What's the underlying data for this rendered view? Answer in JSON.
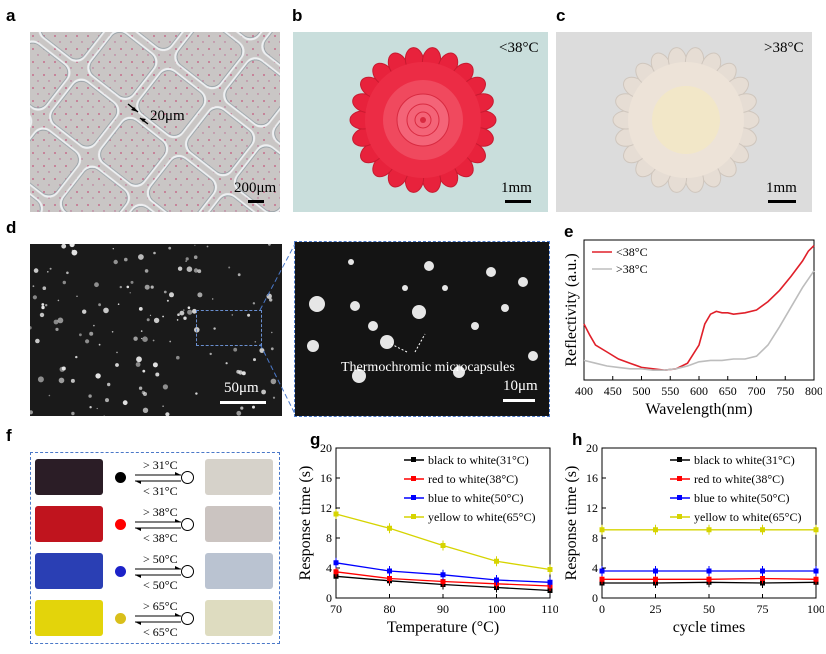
{
  "panels": {
    "a": "a",
    "b": "b",
    "c": "c",
    "d": "d",
    "e": "e",
    "f": "f",
    "g": "g",
    "h": "h"
  },
  "a": {
    "mark": "20μm",
    "scale": "200μm"
  },
  "b": {
    "temp": "<38°C",
    "scale": "1mm"
  },
  "c": {
    "temp": ">38°C",
    "scale": "1mm"
  },
  "d": {
    "scale_left": "50μm",
    "scale_right": "10μm",
    "annotation": "Thermochromic microcapsules"
  },
  "f": {
    "rows": [
      {
        "color": "#2b1d26",
        "dot": "#000000",
        "above": "> 31°C",
        "below": "< 31°C",
        "after": "#d6d2ca"
      },
      {
        "color": "#c0141e",
        "dot": "#ff0000",
        "above": "> 38°C",
        "below": "< 38°C",
        "after": "#cbc4c1"
      },
      {
        "color": "#2a3fb4",
        "dot": "#1c22c8",
        "above": "> 50°C",
        "below": "< 50°C",
        "after": "#bac3d1"
      },
      {
        "color": "#e3d40b",
        "dot": "#d9bf1a",
        "above": "> 65°C",
        "below": "< 65°C",
        "after": "#dedcc0"
      }
    ]
  },
  "chart_data": [
    {
      "panel": "e",
      "type": "line",
      "xlabel": "Wavelength(nm)",
      "ylabel": "Reflectivity (a.u.)",
      "xlim": [
        400,
        800
      ],
      "xticks": [
        400,
        450,
        500,
        550,
        600,
        650,
        700,
        750,
        800
      ],
      "legend_position": "top-left",
      "series": [
        {
          "name": "<38°C",
          "color": "#e0202a",
          "x": [
            400,
            410,
            420,
            440,
            460,
            480,
            500,
            520,
            540,
            560,
            580,
            600,
            610,
            620,
            630,
            640,
            650,
            660,
            680,
            700,
            720,
            740,
            760,
            780,
            790,
            800
          ],
          "y": [
            0.4,
            0.32,
            0.25,
            0.2,
            0.15,
            0.12,
            0.09,
            0.08,
            0.07,
            0.08,
            0.12,
            0.25,
            0.4,
            0.47,
            0.49,
            0.48,
            0.48,
            0.47,
            0.48,
            0.5,
            0.56,
            0.64,
            0.74,
            0.85,
            0.92,
            0.96
          ]
        },
        {
          "name": ">38°C",
          "color": "#bdbdbd",
          "x": [
            400,
            420,
            440,
            460,
            480,
            500,
            520,
            540,
            560,
            580,
            600,
            620,
            640,
            660,
            680,
            700,
            720,
            740,
            760,
            780,
            800
          ],
          "y": [
            0.14,
            0.12,
            0.1,
            0.09,
            0.08,
            0.08,
            0.07,
            0.07,
            0.08,
            0.1,
            0.13,
            0.14,
            0.14,
            0.15,
            0.15,
            0.17,
            0.25,
            0.38,
            0.52,
            0.66,
            0.78
          ]
        }
      ]
    },
    {
      "panel": "g",
      "type": "line",
      "xlabel": "Temperature (°C)",
      "ylabel": "Response time (s)",
      "xlim": [
        70,
        110
      ],
      "ylim": [
        0,
        20
      ],
      "xticks": [
        70,
        80,
        90,
        100,
        110
      ],
      "yticks": [
        0,
        4,
        8,
        12,
        16,
        20
      ],
      "legend_position": "top-right",
      "series": [
        {
          "name": "black to white(31°C)",
          "color": "#000000",
          "x": [
            70,
            80,
            90,
            100,
            110
          ],
          "y": [
            2.9,
            2.3,
            1.8,
            1.4,
            1.0
          ]
        },
        {
          "name": "red to white(38°C)",
          "color": "#ff0000",
          "x": [
            70,
            80,
            90,
            100,
            110
          ],
          "y": [
            3.5,
            2.6,
            2.2,
            1.9,
            1.6
          ]
        },
        {
          "name": "blue to white(50°C)",
          "color": "#0000ff",
          "x": [
            70,
            80,
            90,
            100,
            110
          ],
          "y": [
            4.7,
            3.6,
            3.1,
            2.4,
            2.1
          ]
        },
        {
          "name": "yellow to white(65°C)",
          "color": "#d6d400",
          "x": [
            70,
            80,
            90,
            100,
            110
          ],
          "y": [
            11.2,
            9.3,
            7.0,
            4.9,
            3.8
          ]
        }
      ]
    },
    {
      "panel": "h",
      "type": "line",
      "xlabel": "cycle times",
      "ylabel": "Response time (s)",
      "xlim": [
        0,
        100
      ],
      "ylim": [
        0,
        20
      ],
      "xticks": [
        0,
        25,
        50,
        75,
        100
      ],
      "yticks": [
        0,
        4,
        8,
        12,
        16,
        20
      ],
      "legend_position": "top-right",
      "series": [
        {
          "name": "black to white(31°C)",
          "color": "#000000",
          "x": [
            0,
            25,
            50,
            75,
            100
          ],
          "y": [
            2.0,
            2.0,
            2.1,
            2.0,
            2.1
          ]
        },
        {
          "name": "red to white(38°C)",
          "color": "#ff0000",
          "x": [
            0,
            25,
            50,
            75,
            100
          ],
          "y": [
            2.5,
            2.5,
            2.5,
            2.6,
            2.5
          ]
        },
        {
          "name": "blue to white(50°C)",
          "color": "#0000ff",
          "x": [
            0,
            25,
            50,
            75,
            100
          ],
          "y": [
            3.6,
            3.6,
            3.6,
            3.6,
            3.6
          ]
        },
        {
          "name": "yellow to white(65°C)",
          "color": "#d6d400",
          "x": [
            0,
            25,
            50,
            75,
            100
          ],
          "y": [
            9.1,
            9.1,
            9.1,
            9.1,
            9.1
          ]
        }
      ]
    }
  ]
}
